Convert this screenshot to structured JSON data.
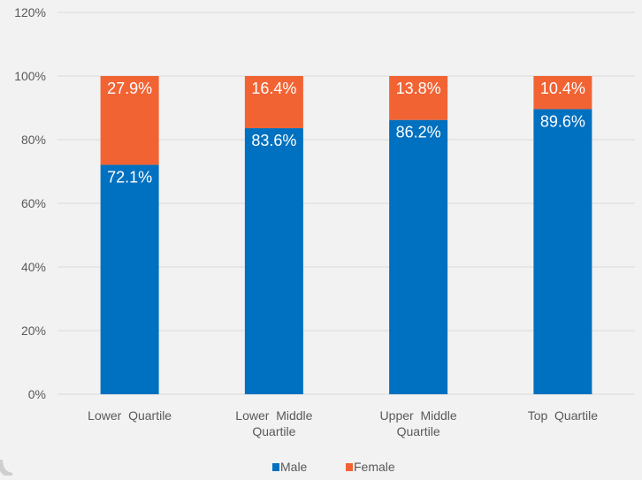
{
  "chart_data": {
    "type": "bar",
    "stacked": true,
    "categories": [
      "Lower  Quartile",
      "Lower  Middle Quartile",
      "Upper  Middle Quartile",
      "Top  Quartile"
    ],
    "category_lines": [
      [
        "Lower  Quartile"
      ],
      [
        "Lower  Middle",
        "Quartile"
      ],
      [
        "Upper  Middle",
        "Quartile"
      ],
      [
        "Top  Quartile"
      ]
    ],
    "series": [
      {
        "name": "Male",
        "values": [
          72.1,
          83.6,
          86.2,
          89.6
        ],
        "labels": [
          "72.1%",
          "83.6%",
          "86.2%",
          "89.6%"
        ],
        "color": "#0070c0"
      },
      {
        "name": "Female",
        "values": [
          27.9,
          16.4,
          13.8,
          10.4
        ],
        "labels": [
          "27.9%",
          "16.4%",
          "13.8%",
          "10.4%"
        ],
        "color": "#f26334"
      }
    ],
    "yticks": [
      {
        "value": 0,
        "label": "0%"
      },
      {
        "value": 20,
        "label": "20%"
      },
      {
        "value": 40,
        "label": "40%"
      },
      {
        "value": 60,
        "label": "60%"
      },
      {
        "value": 80,
        "label": "80%"
      },
      {
        "value": 100,
        "label": "100%"
      },
      {
        "value": 120,
        "label": "120%"
      }
    ],
    "ylim": [
      0,
      120
    ],
    "grid": true,
    "legend_position": "bottom-center",
    "title": "",
    "xlabel": "",
    "ylabel": ""
  },
  "colors": {
    "background": "#f2f2f2",
    "gridline": "#d9d9d9",
    "axis_text": "#595959",
    "data_label": "#ffffff"
  }
}
